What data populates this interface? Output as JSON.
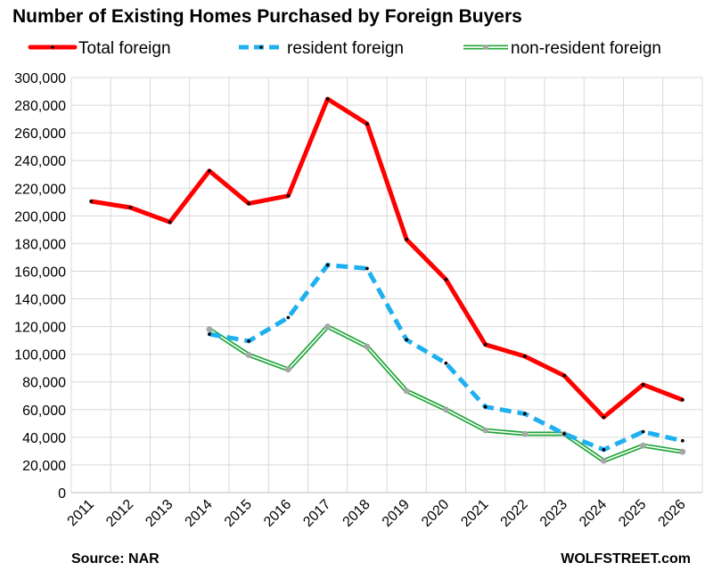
{
  "chart_data": {
    "type": "line",
    "title": "Number of Existing Homes Purchased by Foreign Buyers",
    "xlabel": "",
    "ylabel": "",
    "ylim": [
      0,
      300000
    ],
    "y_ticks": [
      "0",
      "20,000",
      "40,000",
      "60,000",
      "80,000",
      "100,000",
      "120,000",
      "140,000",
      "160,000",
      "180,000",
      "200,000",
      "220,000",
      "240,000",
      "260,000",
      "280,000",
      "300,000"
    ],
    "categories": [
      "2011",
      "2012",
      "2013",
      "2014",
      "2015",
      "2016",
      "2017",
      "2018",
      "2019",
      "2020",
      "2021",
      "2022",
      "2023",
      "2024",
      "2025",
      "2026"
    ],
    "grid": "horizontal",
    "legend": "top",
    "series": [
      {
        "name": "Total foreign",
        "color": "#ff0000",
        "values": [
          210500,
          206000,
          195500,
          232500,
          209000,
          214500,
          284500,
          266500,
          183000,
          154000,
          107000,
          98500,
          84500,
          54500,
          78000,
          67000
        ]
      },
      {
        "name": "resident foreign",
        "color": "#1fb0f0",
        "values": [
          null,
          null,
          null,
          114500,
          109500,
          126500,
          164500,
          162000,
          110500,
          93500,
          62000,
          57000,
          42500,
          31000,
          44000,
          37500
        ]
      },
      {
        "name": "non-resident foreign",
        "color": "#22a63a",
        "values": [
          null,
          null,
          null,
          118000,
          99500,
          89000,
          120000,
          105500,
          73500,
          60000,
          45000,
          42500,
          42500,
          23000,
          34000,
          29500
        ]
      }
    ],
    "source": "Source: NAR",
    "credit": "WOLFSTREET.com"
  }
}
